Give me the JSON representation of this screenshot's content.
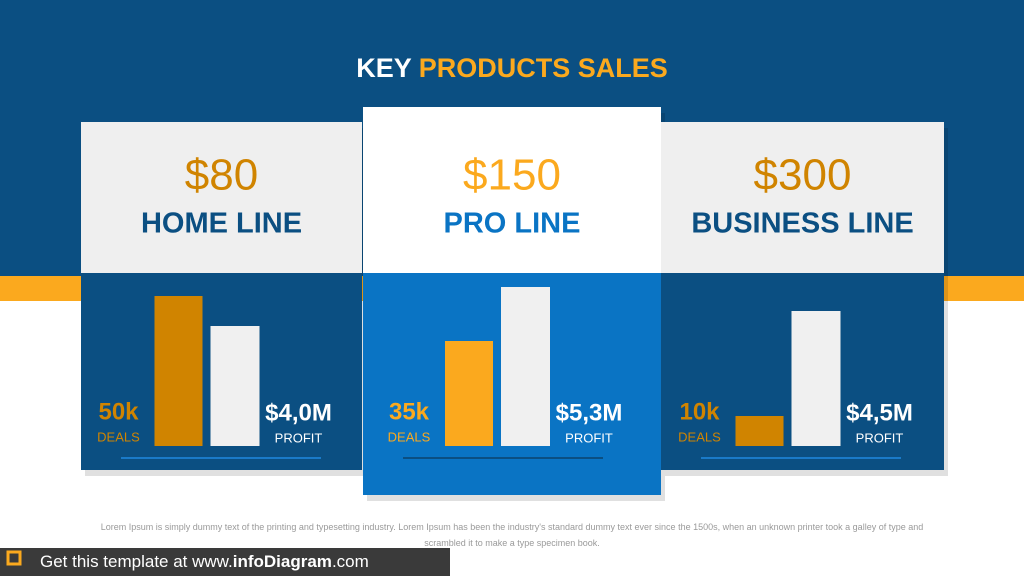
{
  "title": {
    "part1": "KEY",
    "part2": "PRODUCTS SALES"
  },
  "cards": [
    {
      "price": "$80",
      "name": "HOME LINE",
      "deals": {
        "value": 50000,
        "label": "50k"
      },
      "deals_caption": "DEALS",
      "profit": {
        "value": 4000000,
        "label": "$4,0M"
      },
      "profit_caption": "PROFIT"
    },
    {
      "price": "$150",
      "name": "PRO LINE",
      "deals": {
        "value": 35000,
        "label": "35k"
      },
      "deals_caption": "DEALS",
      "profit": {
        "value": 5300000,
        "label": "$5,3M"
      },
      "profit_caption": "PROFIT"
    },
    {
      "price": "$300",
      "name": "BUSINESS LINE",
      "deals": {
        "value": 10000,
        "label": "10k"
      },
      "deals_caption": "DEALS",
      "profit": {
        "value": 4500000,
        "label": "$4,5M"
      },
      "profit_caption": "PROFIT"
    }
  ],
  "footnote": "Lorem Ipsum is simply dummy text of the printing and typesetting industry. Lorem Ipsum has been the industry's standard dummy text ever since the 1500s, when an unknown printer took a galley of type and scrambled it to make a type specimen book.",
  "footer": {
    "prefix": "Get this template at www.",
    "brand": "infoDiagram",
    "suffix": ".com"
  }
}
